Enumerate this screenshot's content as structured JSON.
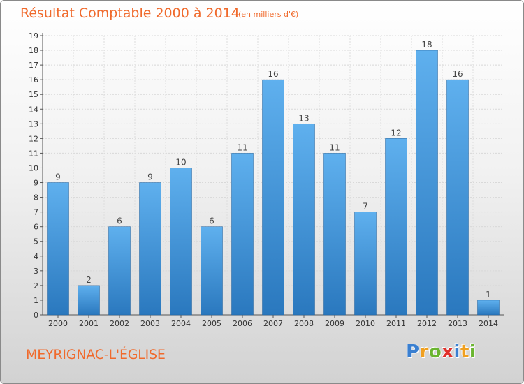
{
  "header": {
    "title": "Résultat Comptable 2000 à 2014",
    "subtitle": "(en milliers d'€)"
  },
  "footer": {
    "commune": "MEYRIGNAC-L'ÉGLISE",
    "logo_letters": [
      {
        "char": "P",
        "color": "#3a7fd0"
      },
      {
        "char": "r",
        "color": "#f0a020"
      },
      {
        "char": "o",
        "color": "#6ab530"
      },
      {
        "char": "x",
        "color": "#e0302a"
      },
      {
        "char": "i",
        "color": "#3a7fd0"
      },
      {
        "char": "t",
        "color": "#f0a020"
      },
      {
        "char": "i",
        "color": "#6ab530"
      }
    ]
  },
  "colors": {
    "bar_light": "#5fb0ee",
    "bar_dark": "#2a78be",
    "title": "#f06a2c"
  },
  "chart_data": {
    "type": "bar",
    "title": "Résultat Comptable 2000 à 2014",
    "subtitle": "(en milliers d'€)",
    "categories": [
      "2000",
      "2001",
      "2002",
      "2003",
      "2004",
      "2005",
      "2006",
      "2007",
      "2008",
      "2009",
      "2010",
      "2011",
      "2012",
      "2013",
      "2014"
    ],
    "values": [
      9,
      2,
      6,
      9,
      10,
      6,
      11,
      16,
      13,
      11,
      7,
      12,
      18,
      16,
      1
    ],
    "ylim": [
      0,
      19
    ],
    "yticks": [
      0,
      1,
      2,
      3,
      4,
      5,
      6,
      7,
      8,
      9,
      10,
      11,
      12,
      13,
      14,
      15,
      16,
      17,
      18,
      19
    ],
    "grid": true,
    "legend": "none"
  }
}
